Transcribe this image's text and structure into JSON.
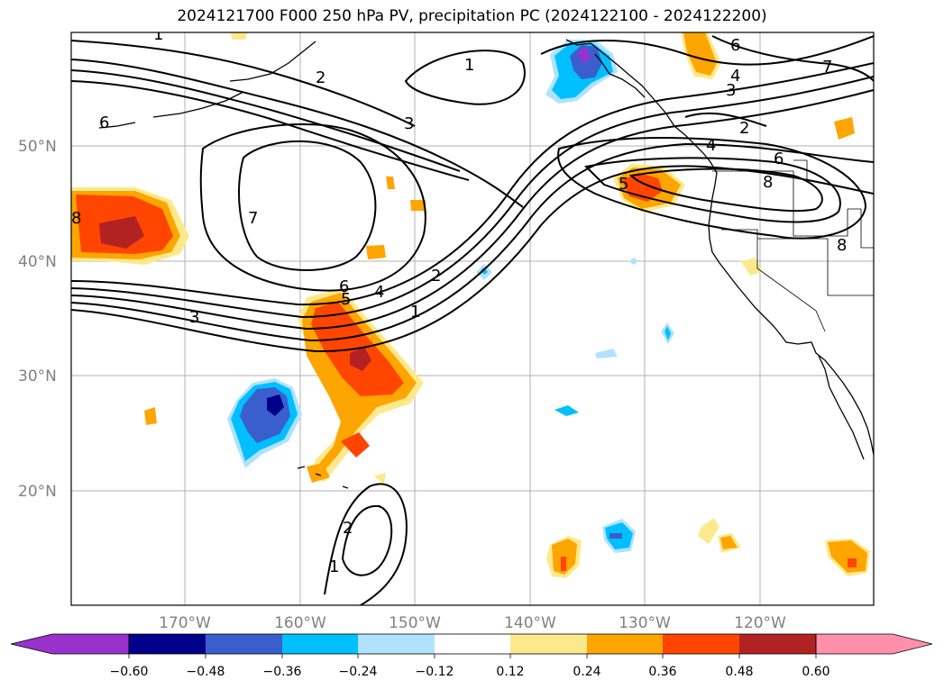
{
  "title": "2024121700 F000 250 hPa PV, precipitation PC (2024122100 - 2024122200)",
  "map": {
    "lat_labels": [
      "50°N",
      "40°N",
      "30°N",
      "20°N"
    ],
    "lon_labels": [
      "170°W",
      "160°W",
      "150°W",
      "140°W",
      "130°W",
      "120°W"
    ],
    "contour_labels": [
      "1",
      "2",
      "3",
      "4",
      "5",
      "6",
      "7",
      "8"
    ],
    "label_color": "#808080",
    "grid_color": "#b0b0b0"
  },
  "colorbar": {
    "ticks": [
      "−0.60",
      "−0.48",
      "−0.36",
      "−0.24",
      "−0.12",
      "0.12",
      "0.24",
      "0.36",
      "0.48",
      "0.60"
    ],
    "colors": [
      "#9932cc",
      "#00008b",
      "#3a5fcd",
      "#00bfff",
      "#b0e2ff",
      "#ffffff",
      "#fce98b",
      "#ffa500",
      "#ff4500",
      "#b22222",
      "#ff8fab"
    ]
  }
}
